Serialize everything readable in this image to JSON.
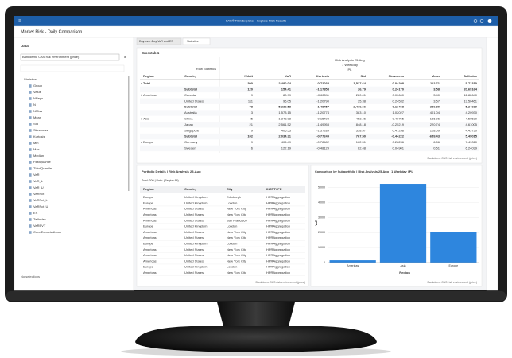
{
  "app_bar": {
    "title": "SAS® Risk Explorer - Explore Risk Results"
  },
  "header": {
    "title": "Market Risk - Daily Comparison"
  },
  "data_panel": {
    "title": "Data",
    "source": "Bankdemo CAS risk environment (price)",
    "group": "Statistics",
    "items": [
      "Group",
      "Value",
      "NReps",
      "N",
      "NMiss",
      "Mean",
      "Std",
      "Skewness",
      "Kurtosis",
      "Min",
      "Max",
      "Median",
      "FirstQuartile",
      "ThirdQuartile",
      "VaR",
      "VaR_L",
      "VaR_U",
      "VaRPct",
      "VaRPct_L",
      "VaRPct_U",
      "ES",
      "TailIndex",
      "VaREVT",
      "CondExpectedLoss"
    ],
    "footer": "No selections"
  },
  "tabs": [
    "Day-over-Day VaR and ES",
    "Statistics"
  ],
  "crosstab": {
    "title": "Crosstab 1",
    "analysis": "Risk Analysis 25-Aug",
    "horizon": "1 Weekday",
    "measure": "PL",
    "row_label": "Row Statistics",
    "columns": [
      "Region",
      "Country",
      "NUnit",
      "VaR",
      "Kurtosis",
      "Std",
      "Skewness",
      "Mean",
      "TailIndex"
    ],
    "rows": [
      [
        "Total",
        null,
        "300",
        "2,480.04",
        "-0.72038",
        "1,537.64",
        "-0.04298",
        "112.71",
        "5.71310"
      ],
      [
        null,
        "Subtotal",
        "120",
        "154.41",
        "-1.17858",
        "26.79",
        "0.24170",
        "3.58",
        "20.69164"
      ],
      [
        "Americas",
        "Canada",
        "9",
        "80.99",
        "-0.62511",
        "220.01",
        "0.00660",
        "3.40",
        "12.82640"
      ],
      [
        null,
        "United States",
        "111",
        "96.05",
        "-1.20790",
        "25.38",
        "0.24532",
        "3.57",
        "13.50461"
      ],
      [
        null,
        "Subtotal",
        "78",
        "5,239.58",
        "-1.48457",
        "2,476.66",
        "-0.13468",
        "386.80",
        "5.24689"
      ],
      [
        null,
        "Australia",
        "3",
        "1,573.15",
        "-1.20774",
        "383.10",
        "1.02027",
        "401.04",
        "4.20930"
      ],
      [
        "Asia",
        "China",
        "45",
        "1,348.08",
        "-0.15492",
        "453.46",
        "-0.46755",
        "136.06",
        "4.50530"
      ],
      [
        null,
        "Japan",
        "21",
        "2,561.52",
        "-1.49958",
        "848.18",
        "-0.25219",
        "220.74",
        "4.61005"
      ],
      [
        null,
        "Singapore",
        "9",
        "406.53",
        "-1.57289",
        "358.57",
        "0.47258",
        "128.09",
        "4.43730"
      ],
      [
        null,
        "Subtotal",
        "102",
        "2,034.31",
        "-0.77249",
        "767.50",
        "-0.44222",
        "-659.43",
        "5.49015"
      ],
      [
        "Europe",
        "Germany",
        "9",
        "406.49",
        "-0.78482",
        "162.51",
        "0.28236",
        "6.56",
        "7.49020"
      ],
      [
        null,
        "Sweden",
        "6",
        "122.19",
        "-0.48129",
        "62.48",
        "0.04901",
        "0.51",
        "6.24039"
      ]
    ],
    "footer": "Bankdemo CAS risk environment (price)"
  },
  "portfolio": {
    "title": "Portfolio Details | Risk Analysis 25-Aug",
    "summary": "Total: 300 | Path: (Region:All)",
    "columns": [
      "Region",
      "Country",
      "City",
      "INSTTYPE"
    ],
    "rows": [
      [
        "Europe",
        "United Kingdom",
        "Edinburgh",
        "HPRAggregation"
      ],
      [
        "Europe",
        "United Kingdom",
        "London",
        "HPRAggregation"
      ],
      [
        "Americas",
        "United States",
        "New York City",
        "HPRAggregation"
      ],
      [
        "Americas",
        "United States",
        "New York City",
        "HPRAggregation"
      ],
      [
        "Americas",
        "United States",
        "San Francisco",
        "HPRAggregation"
      ],
      [
        "Europe",
        "United Kingdom",
        "London",
        "HPRAggregation"
      ],
      [
        "Americas",
        "United States",
        "New York City",
        "HPRAggregation"
      ],
      [
        "Americas",
        "United States",
        "New York City",
        "HPRAggregation"
      ],
      [
        "Europe",
        "United Kingdom",
        "London",
        "HPRAggregation"
      ],
      [
        "Americas",
        "United States",
        "New York City",
        "HPRAggregation"
      ],
      [
        "Americas",
        "United States",
        "New York City",
        "HPRAggregation"
      ],
      [
        "Americas",
        "United States",
        "New York City",
        "HPRAggregation"
      ],
      [
        "Europe",
        "United Kingdom",
        "London",
        "HPRAggregation"
      ],
      [
        "Americas",
        "United States",
        "New York City",
        "HPRAggregation"
      ]
    ],
    "footer": "Bankdemo CAS risk environment (price)"
  },
  "chart_data": {
    "type": "bar",
    "title": "Comparison by Subportfolio | Risk Analysis 25-Aug | 1 Weekday | PL",
    "x_label": "Region",
    "y_label": "VaR",
    "categories": [
      "Americas",
      "Asia",
      "Europe"
    ],
    "values": [
      154.41,
      5239.58,
      2034.31
    ],
    "color": "#2e86de",
    "ylim": [
      0,
      5400
    ],
    "yticks": [
      0,
      {
        "value": 1000,
        "label": "1,000"
      },
      {
        "value": 2000,
        "label": "2,000"
      },
      {
        "value": 3000,
        "label": "3,000"
      },
      {
        "value": 4000,
        "label": "4,000"
      },
      {
        "value": 5000,
        "label": "5,000"
      }
    ],
    "grid": true,
    "footer": "Bankdemo CAS risk environment (price)"
  }
}
